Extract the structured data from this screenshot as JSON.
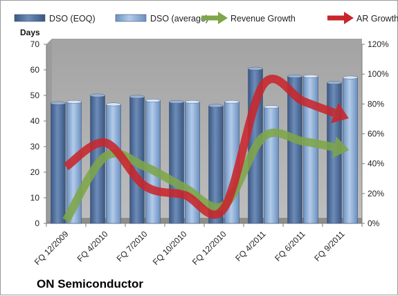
{
  "chart_data": {
    "type": "bar",
    "title": "",
    "company": "ON Semiconductor",
    "categories": [
      "FQ 12/2009",
      "FQ 4/2010",
      "FQ 7/2010",
      "FQ 10/2010",
      "FQ 12/2010",
      "FQ 4/2011",
      "FQ 6/2011",
      "FQ 9/2011"
    ],
    "y_left_label": "Days",
    "ylim_left": [
      0,
      70
    ],
    "yticks_left": [
      0,
      10,
      20,
      30,
      40,
      50,
      60,
      70
    ],
    "ylim_right": [
      0,
      120
    ],
    "yticks_right": [
      "0%",
      "20%",
      "40%",
      "60%",
      "80%",
      "100%",
      "120%"
    ],
    "yticks_right_values": [
      0,
      20,
      40,
      60,
      80,
      100,
      120
    ],
    "legend_position": "top",
    "grid": false,
    "bar_series": [
      {
        "name": "DSO (EOQ)",
        "axis": "left",
        "color": "#4f6d99",
        "values": [
          47,
          50,
          49.5,
          47.5,
          46,
          60.5,
          57.5,
          55
        ]
      },
      {
        "name": "DSO (average)",
        "axis": "left",
        "color": "#7fa3cf",
        "values": [
          47.5,
          46.5,
          48,
          47.5,
          47.5,
          45.5,
          57.5,
          57
        ]
      }
    ],
    "line_series": [
      {
        "name": "Revenue Growth",
        "axis": "right",
        "unit": "%",
        "color": "#7ea64a",
        "values": [
          2,
          45,
          38,
          24,
          12,
          58,
          55,
          50
        ]
      },
      {
        "name": "AR Growth",
        "axis": "right",
        "unit": "%",
        "color": "#c9262c",
        "values": [
          38,
          54,
          25,
          19,
          10,
          93,
          82,
          72
        ]
      }
    ]
  }
}
